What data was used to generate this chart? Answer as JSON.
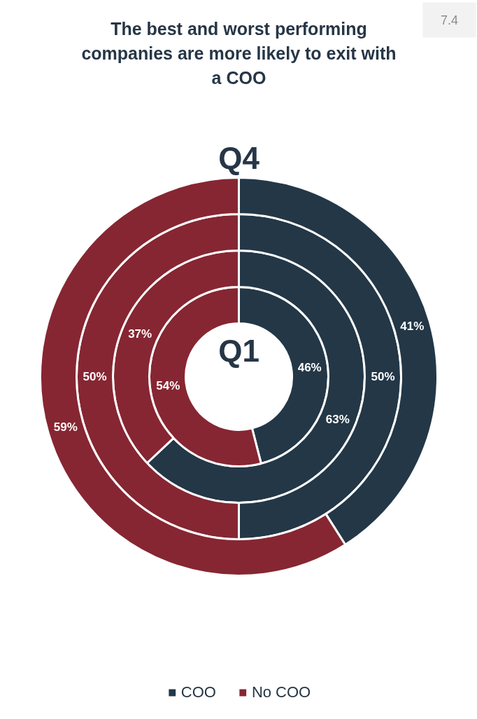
{
  "chart_data": {
    "type": "donut",
    "title": "The best and worst performing companies are more likely to exit with a COO",
    "categories": [
      "COO",
      "No COO"
    ],
    "colors": [
      "#233747",
      "#862632"
    ],
    "series": [
      {
        "name": "Q1",
        "values": [
          46,
          54
        ],
        "value_labels": [
          "46%",
          "54%"
        ]
      },
      {
        "values": [
          63,
          37
        ],
        "value_labels": [
          "63%",
          "37%"
        ]
      },
      {
        "values": [
          50,
          50
        ],
        "value_labels": [
          "50%",
          "50%"
        ]
      },
      {
        "name": "Q4",
        "values": [
          41,
          59
        ],
        "value_labels": [
          "41%",
          "59%"
        ]
      }
    ],
    "legend": "bottom",
    "annotations": [
      "7.4"
    ]
  }
}
